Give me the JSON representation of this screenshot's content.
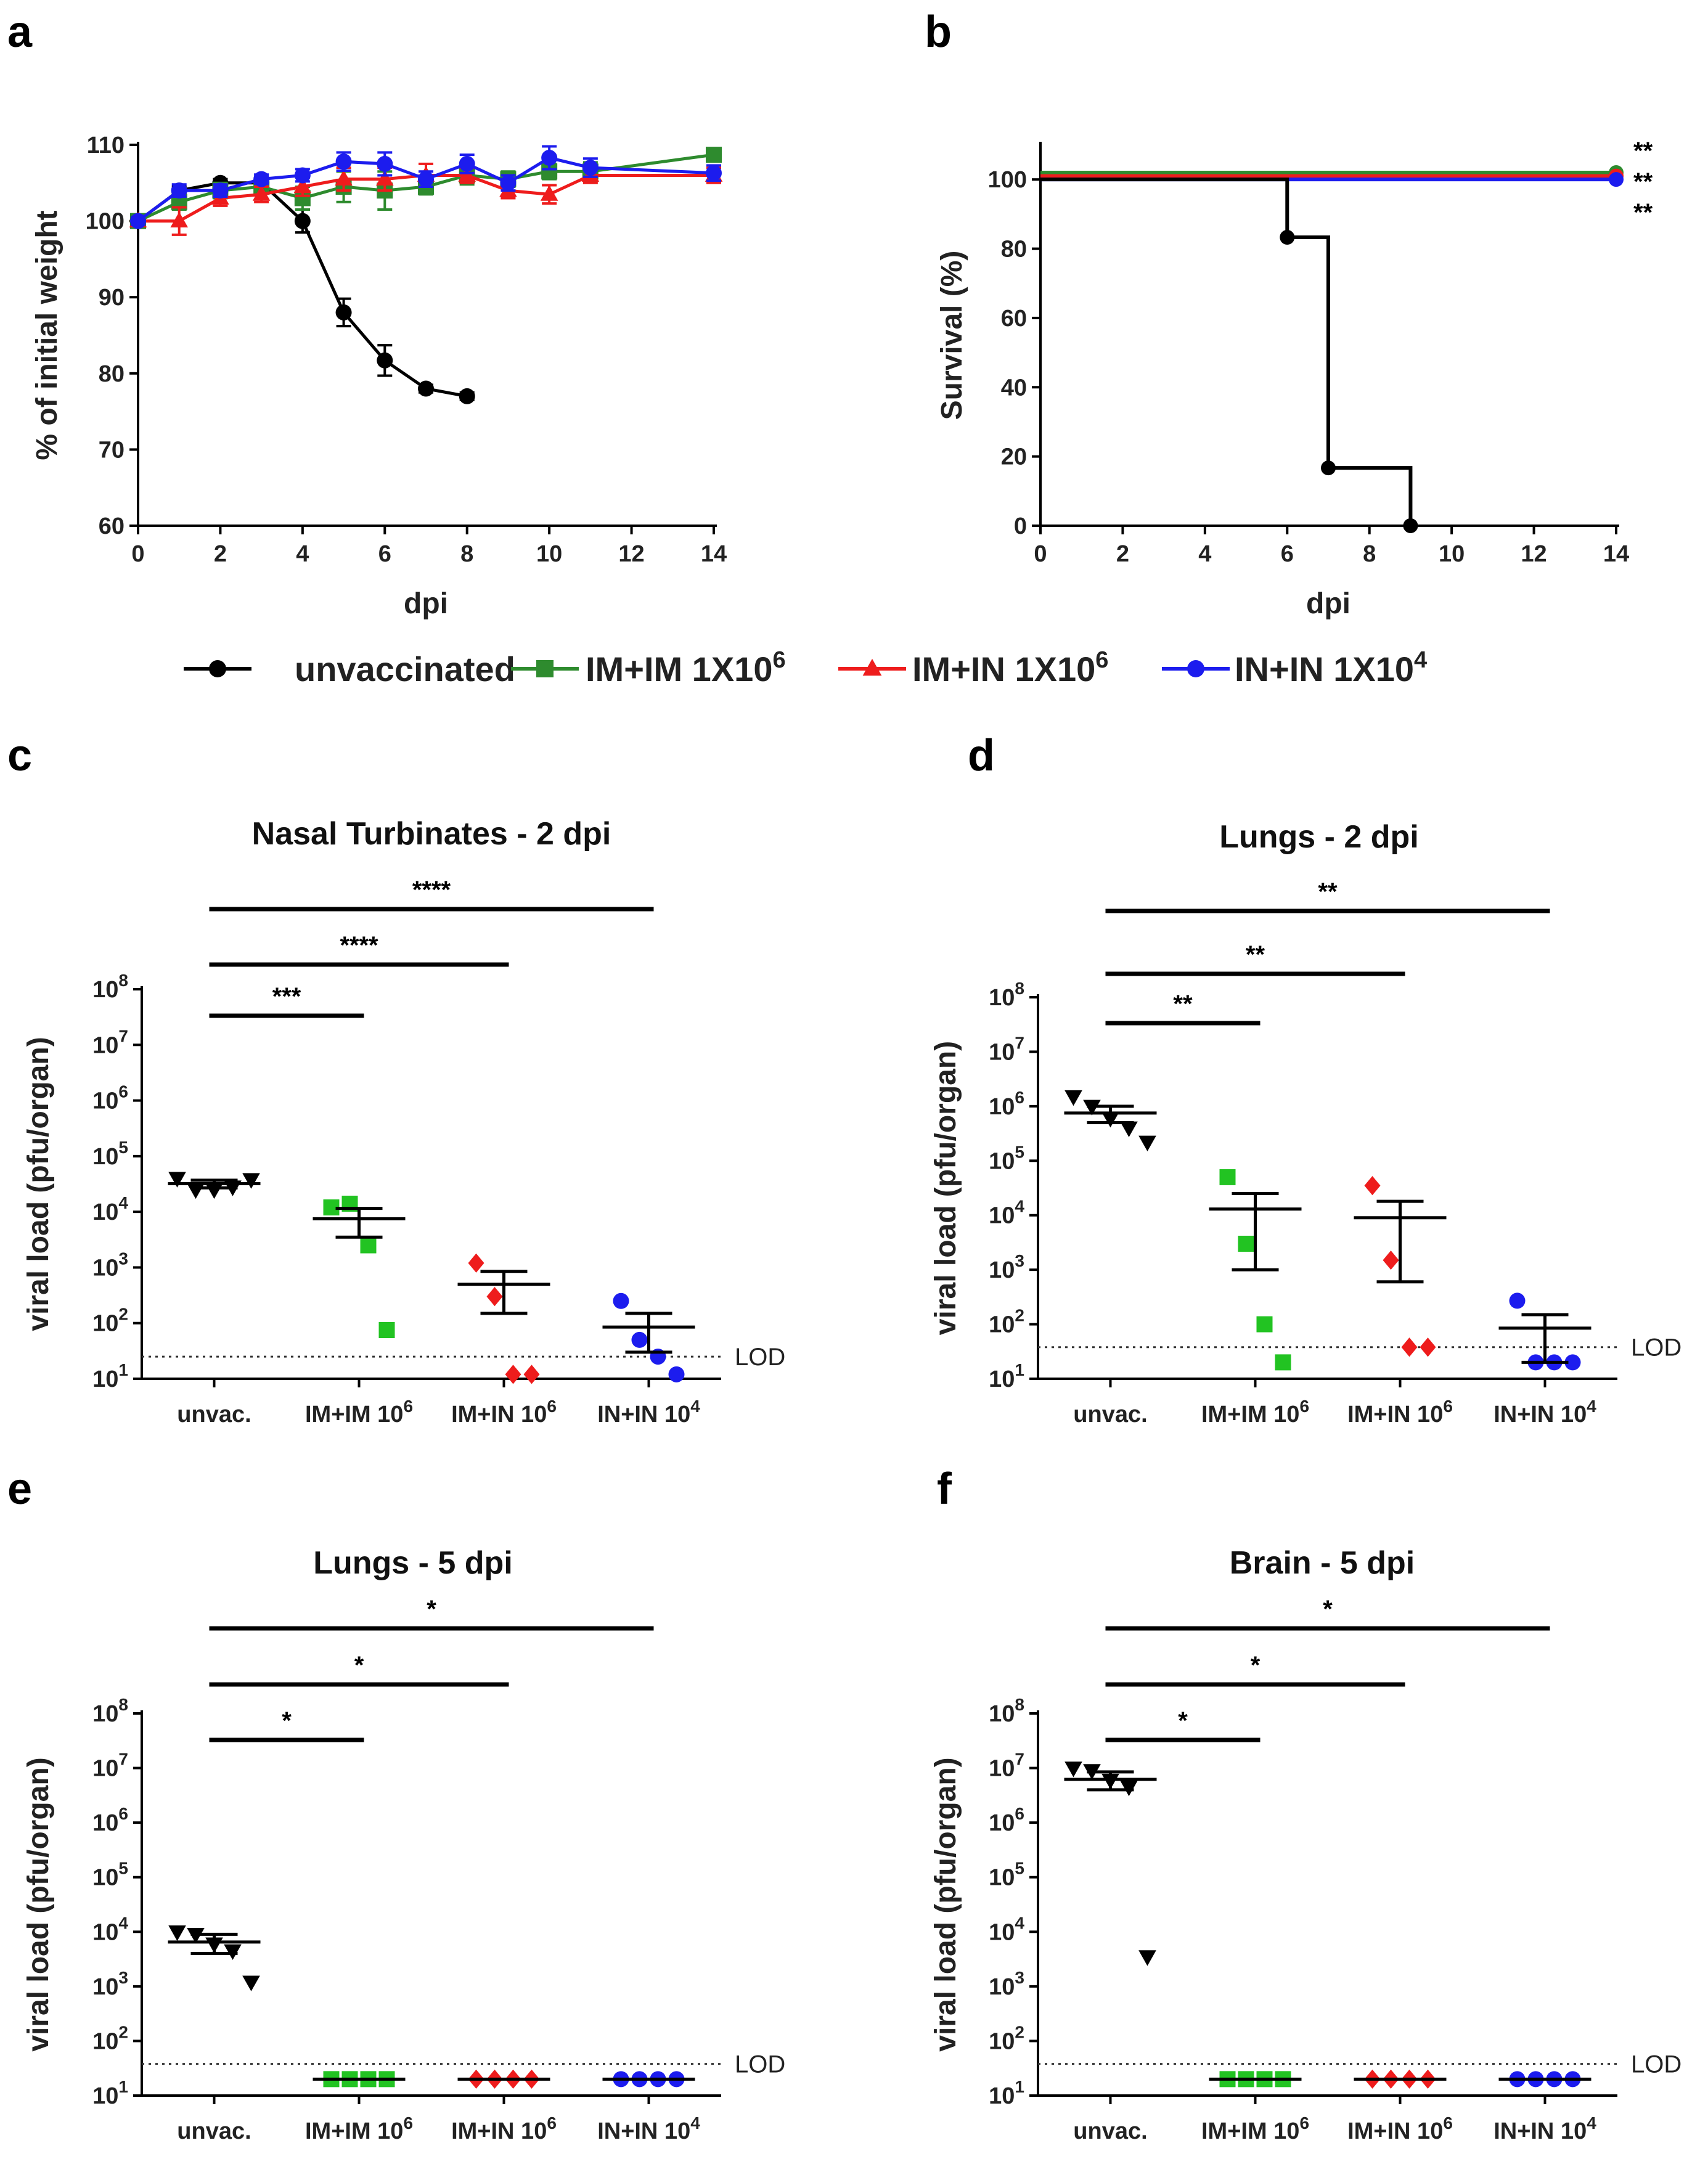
{
  "panel_labels": [
    "a",
    "b",
    "c",
    "d",
    "e",
    "f"
  ],
  "legend": [
    {
      "key": "unvaccinated",
      "label": "unvaccinated",
      "color": "#000000",
      "marker": "circle"
    },
    {
      "key": "imim",
      "label": "IM+IM 1X10",
      "sup": "6",
      "color": "#2e8b2e",
      "marker": "square"
    },
    {
      "key": "imin",
      "label": "IM+IN 1X10",
      "sup": "6",
      "color": "#ee1c1c",
      "marker": "triangle"
    },
    {
      "key": "inin",
      "label": "IN+IN 1X10",
      "sup": "4",
      "color": "#1c1cee",
      "marker": "circle"
    }
  ],
  "chart_data": [
    {
      "id": "a",
      "type": "line",
      "title": "",
      "xlabel": "dpi",
      "ylabel": "% of initial weight",
      "xlim": [
        0,
        14
      ],
      "ylim": [
        60,
        110
      ],
      "xticks": [
        0,
        2,
        4,
        6,
        8,
        10,
        12,
        14
      ],
      "yticks": [
        60,
        70,
        80,
        90,
        100,
        110
      ],
      "series": [
        {
          "name": "unvaccinated",
          "color": "#000000",
          "marker": "circle",
          "x": [
            0,
            1,
            2,
            3,
            4,
            5,
            6,
            7,
            8
          ],
          "y": [
            100,
            104,
            105,
            105,
            100,
            88,
            81.7,
            78,
            77
          ],
          "err": [
            0.5,
            0.5,
            0.5,
            0.5,
            1.5,
            1.8,
            2,
            0.5,
            0.5
          ]
        },
        {
          "name": "IM+IM 1X10^6",
          "color": "#2e8b2e",
          "marker": "square",
          "x": [
            0,
            1,
            2,
            3,
            4,
            5,
            6,
            7,
            8,
            9,
            10,
            11,
            14
          ],
          "y": [
            100,
            102.5,
            104,
            104.5,
            103,
            104.5,
            104,
            104.5,
            106,
            105.5,
            106.5,
            106.5,
            108.7
          ],
          "err": [
            0.5,
            1,
            1,
            0.8,
            1.5,
            2,
            2.5,
            1,
            1.2,
            1,
            1,
            1.2,
            0.8
          ]
        },
        {
          "name": "IM+IN 1X10^6",
          "color": "#ee1c1c",
          "marker": "triangle",
          "x": [
            0,
            1,
            2,
            3,
            4,
            5,
            6,
            7,
            8,
            9,
            10,
            11,
            14
          ],
          "y": [
            100,
            100,
            103,
            103.5,
            104.5,
            105.5,
            105.5,
            106,
            106,
            104,
            103.5,
            106,
            106
          ],
          "err": [
            0.5,
            1.8,
            1,
            1,
            1.2,
            1.5,
            1.5,
            1.5,
            1,
            1,
            1.2,
            1,
            1
          ]
        },
        {
          "name": "IN+IN 1X10^4",
          "color": "#1c1cee",
          "marker": "circle",
          "x": [
            0,
            1,
            2,
            3,
            4,
            5,
            6,
            7,
            8,
            9,
            10,
            11,
            14
          ],
          "y": [
            100,
            104,
            104,
            105.5,
            106,
            107.8,
            107.5,
            105.5,
            107.5,
            105,
            108.3,
            107,
            106.3
          ],
          "err": [
            0.5,
            0.8,
            0.8,
            0.6,
            0.8,
            1.2,
            1.5,
            1,
            1.2,
            1,
            1.5,
            1.2,
            1
          ]
        }
      ]
    },
    {
      "id": "b",
      "type": "line",
      "subtype": "step",
      "title": "",
      "xlabel": "dpi",
      "ylabel": "Survival (%)",
      "xlim": [
        0,
        14
      ],
      "ylim": [
        0,
        110
      ],
      "xticks": [
        0,
        2,
        4,
        6,
        8,
        10,
        12,
        14
      ],
      "yticks": [
        0,
        20,
        40,
        60,
        80,
        100
      ],
      "series": [
        {
          "name": "unvaccinated",
          "color": "#000000",
          "x": [
            0,
            6,
            6,
            7,
            7,
            9,
            9
          ],
          "y": [
            100,
            100,
            83.3,
            83.3,
            16.7,
            16.7,
            0
          ],
          "markers": [
            [
              6,
              83.3
            ],
            [
              7,
              16.7
            ],
            [
              9,
              0
            ]
          ]
        },
        {
          "name": "IM+IM 1X10^6",
          "color": "#2e8b2e",
          "x": [
            0,
            14
          ],
          "y": [
            102,
            102
          ],
          "markers": [
            [
              14,
              102
            ]
          ]
        },
        {
          "name": "IM+IN 1X10^6",
          "color": "#ee1c1c",
          "x": [
            0,
            14
          ],
          "y": [
            101,
            101
          ],
          "markers": [
            [
              14,
              101
            ]
          ]
        },
        {
          "name": "IN+IN 1X10^4",
          "color": "#1c1cee",
          "x": [
            0,
            14
          ],
          "y": [
            100,
            100
          ],
          "markers": [
            [
              14,
              100
            ]
          ]
        }
      ],
      "annotations": [
        {
          "text": "**",
          "color": "#2e8b2e"
        },
        {
          "text": "**",
          "color": "#ee1c1c"
        },
        {
          "text": "**",
          "color": "#1c1cee"
        }
      ]
    },
    {
      "id": "c",
      "type": "scatter",
      "title": "Nasal Turbinates - 2 dpi",
      "ylabel": "viral load (pfu/organ)",
      "yscale": "log",
      "ylim_exp": [
        1,
        8
      ],
      "categories": [
        "unvac.",
        "IM+IM 10^6",
        "IM+IN 10^6",
        "IN+IN 10^4"
      ],
      "lod": 25,
      "lod_label": "LOD",
      "groups": [
        {
          "points": [
            40000,
            25000,
            25000,
            28000,
            38000
          ],
          "mean": 32000,
          "sem": [
            27000,
            37000
          ]
        },
        {
          "points": [
            12000,
            14000,
            2500,
            75
          ],
          "mean": 7500,
          "sem": [
            3500,
            11500
          ]
        },
        {
          "points": [
            1200,
            300,
            12,
            12
          ],
          "mean": 500,
          "sem": [
            150,
            850
          ]
        },
        {
          "points": [
            250,
            50,
            25,
            12
          ],
          "mean": 85,
          "sem": [
            30,
            150
          ]
        }
      ],
      "significance": [
        {
          "from": 0,
          "to": 1,
          "label": "***"
        },
        {
          "from": 0,
          "to": 2,
          "label": "****"
        },
        {
          "from": 0,
          "to": 3,
          "label": "****"
        }
      ]
    },
    {
      "id": "d",
      "type": "scatter",
      "title": "Lungs - 2 dpi",
      "ylabel": "viral load (pfu/organ)",
      "yscale": "log",
      "ylim_exp": [
        1,
        8
      ],
      "categories": [
        "unvac.",
        "IM+IM 10^6",
        "IM+IN 10^6",
        "IN+IN 10^4"
      ],
      "lod": 38,
      "lod_label": "LOD",
      "groups": [
        {
          "points": [
            1500000,
            1000000,
            600000,
            400000,
            220000
          ],
          "mean": 750000,
          "sem": [
            500000,
            1000000
          ]
        },
        {
          "points": [
            50000,
            3000,
            100,
            20
          ],
          "mean": 13000,
          "sem": [
            1000,
            25000
          ]
        },
        {
          "points": [
            35000,
            1500,
            38,
            38
          ],
          "mean": 9000,
          "sem": [
            600,
            18000
          ]
        },
        {
          "points": [
            270,
            20,
            20,
            20
          ],
          "mean": 85,
          "sem": [
            20,
            150
          ]
        }
      ],
      "significance": [
        {
          "from": 0,
          "to": 1,
          "label": "**"
        },
        {
          "from": 0,
          "to": 2,
          "label": "**"
        },
        {
          "from": 0,
          "to": 3,
          "label": "**"
        }
      ]
    },
    {
      "id": "e",
      "type": "scatter",
      "title": "Lungs - 5 dpi",
      "ylabel": "viral load (pfu/organ)",
      "yscale": "log",
      "ylim_exp": [
        1,
        8
      ],
      "categories": [
        "unvac.",
        "IM+IM 10^6",
        "IM+IN 10^6",
        "IN+IN 10^4"
      ],
      "lod": 38,
      "lod_label": "LOD",
      "groups": [
        {
          "points": [
            10000,
            9000,
            6000,
            4500,
            1200
          ],
          "mean": 6500,
          "sem": [
            4000,
            9000
          ]
        },
        {
          "points": [
            20,
            20,
            20,
            20
          ],
          "mean": 20,
          "sem": [
            20,
            20
          ]
        },
        {
          "points": [
            20,
            20,
            20,
            20
          ],
          "mean": 20,
          "sem": [
            20,
            20
          ]
        },
        {
          "points": [
            20,
            20,
            20,
            20
          ],
          "mean": 20,
          "sem": [
            20,
            20
          ]
        }
      ],
      "significance": [
        {
          "from": 0,
          "to": 1,
          "label": "*"
        },
        {
          "from": 0,
          "to": 2,
          "label": "*"
        },
        {
          "from": 0,
          "to": 3,
          "label": "*"
        }
      ]
    },
    {
      "id": "f",
      "type": "scatter",
      "title": "Brain - 5 dpi",
      "ylabel": "viral load (pfu/organ)",
      "yscale": "log",
      "ylim_exp": [
        1,
        8
      ],
      "categories": [
        "unvac.",
        "IM+IM 10^6",
        "IM+IN 10^6",
        "IN+IN 10^4"
      ],
      "lod": 38,
      "lod_label": "LOD",
      "groups": [
        {
          "points": [
            10000000,
            9000000,
            6000000,
            4500000,
            3500
          ],
          "mean": 6200000,
          "sem": [
            4000000,
            8500000
          ]
        },
        {
          "points": [
            20,
            20,
            20,
            20
          ],
          "mean": 20,
          "sem": [
            20,
            20
          ]
        },
        {
          "points": [
            20,
            20,
            20,
            20
          ],
          "mean": 20,
          "sem": [
            20,
            20
          ]
        },
        {
          "points": [
            20,
            20,
            20,
            20
          ],
          "mean": 20,
          "sem": [
            20,
            20
          ]
        }
      ],
      "significance": [
        {
          "from": 0,
          "to": 1,
          "label": "*"
        },
        {
          "from": 0,
          "to": 2,
          "label": "*"
        },
        {
          "from": 0,
          "to": 3,
          "label": "*"
        }
      ]
    }
  ],
  "scatter_colors": [
    {
      "fill": "#000000"
    },
    {
      "fill": "#22c322"
    },
    {
      "fill": "#ee1c1c"
    },
    {
      "fill": "#1c1cee"
    }
  ],
  "scatter_markers": [
    "triangle-down",
    "square",
    "diamond",
    "circle"
  ]
}
